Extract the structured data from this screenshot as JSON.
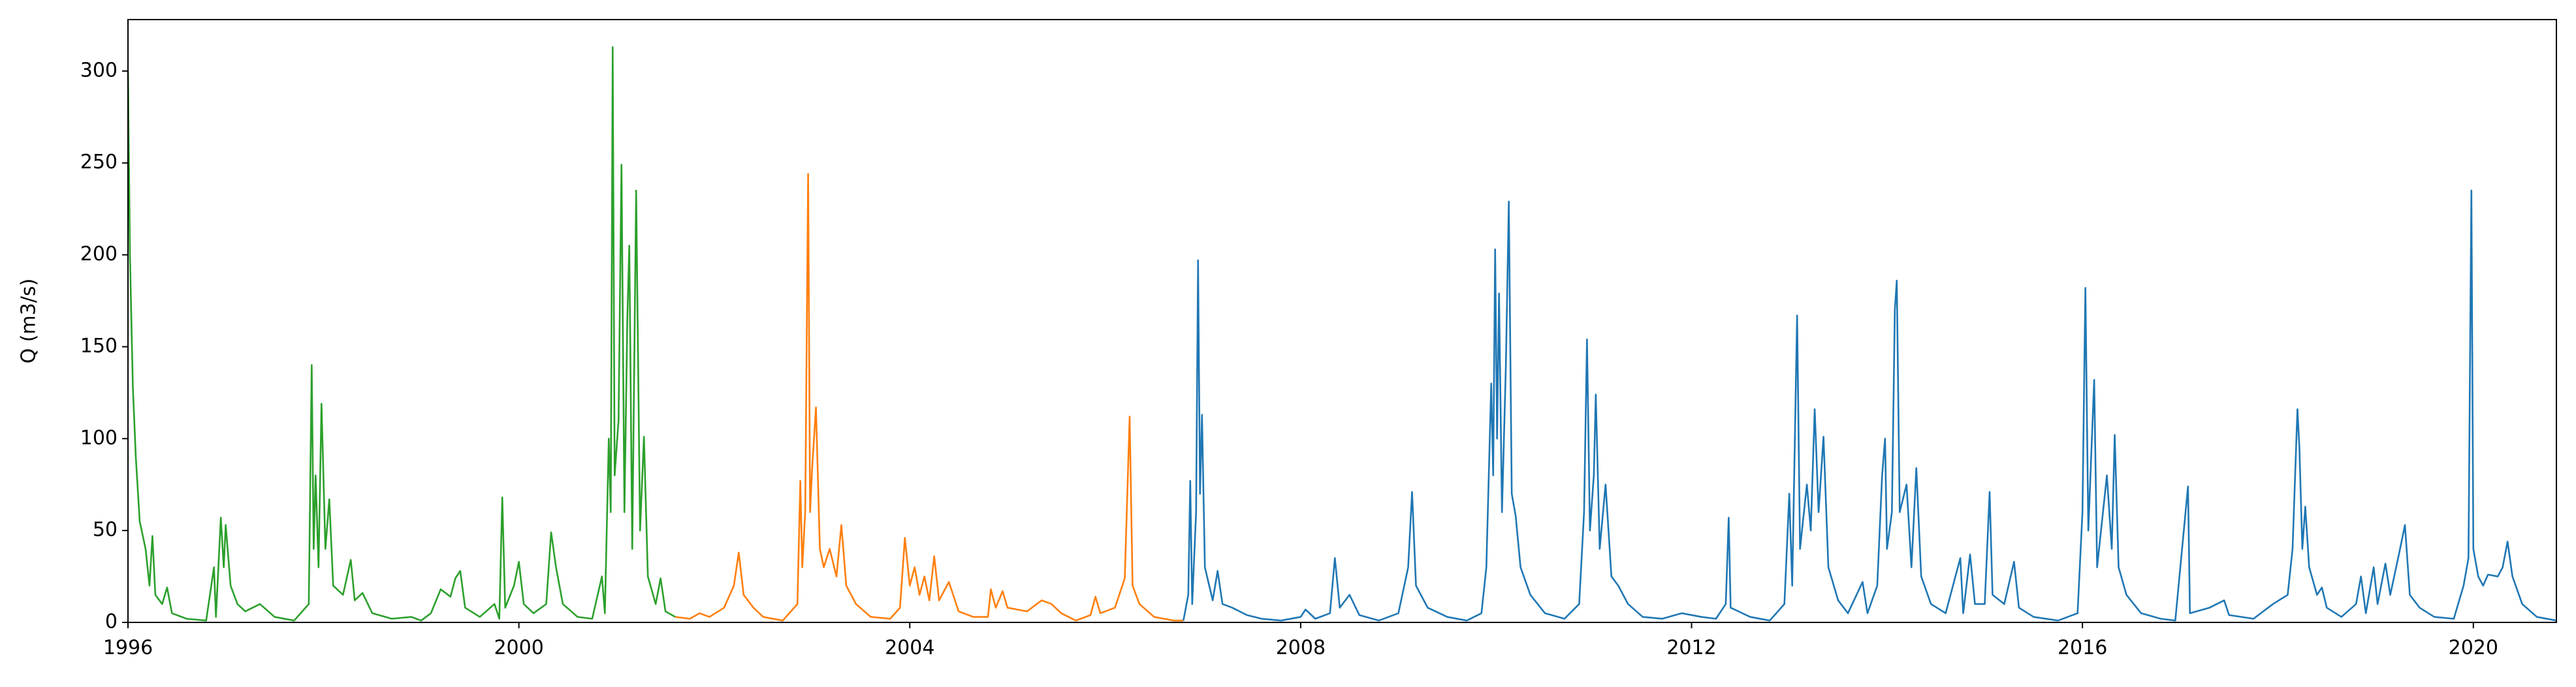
{
  "chart_data": {
    "type": "line",
    "y_label": "Q (m3/s)",
    "xlim": [
      1996,
      2020.85
    ],
    "xticks": [
      1996,
      2000,
      2004,
      2008,
      2012,
      2016,
      2020
    ],
    "ylim": [
      0,
      328
    ],
    "yticks": [
      0,
      50,
      100,
      150,
      200,
      250,
      300
    ],
    "grid": false,
    "series": [
      {
        "color": "#2ca02c",
        "x": [
          1996.0,
          1996.02,
          1996.05,
          1996.08,
          1996.12,
          1996.18,
          1996.22,
          1996.25,
          1996.28,
          1996.35,
          1996.4,
          1996.45,
          1996.6,
          1996.8,
          1996.88,
          1996.9,
          1996.95,
          1996.98,
          1997.0,
          1997.05,
          1997.12,
          1997.2,
          1997.35,
          1997.5,
          1997.7,
          1997.85,
          1997.88,
          1997.9,
          1997.92,
          1997.95,
          1997.98,
          1998.02,
          1998.06,
          1998.1,
          1998.2,
          1998.28,
          1998.32,
          1998.4,
          1998.5,
          1998.7,
          1998.9,
          1999.0,
          1999.1,
          1999.2,
          1999.3,
          1999.35,
          1999.4,
          1999.45,
          1999.6,
          1999.75,
          1999.8,
          1999.83,
          1999.86,
          1999.95,
          2000.0,
          2000.05,
          2000.15,
          2000.28,
          2000.33,
          2000.38,
          2000.45,
          2000.6,
          2000.75,
          2000.85,
          2000.88,
          2000.92,
          2000.94,
          2000.96,
          2000.98,
          2001.02,
          2001.05,
          2001.08,
          2001.11,
          2001.13,
          2001.16,
          2001.2,
          2001.24,
          2001.28,
          2001.32,
          2001.4,
          2001.45,
          2001.5,
          2001.6
        ],
        "values": [
          300,
          200,
          128,
          90,
          55,
          40,
          20,
          47,
          15,
          10,
          19,
          5,
          2,
          1,
          30,
          3,
          57,
          30,
          53,
          20,
          10,
          6,
          10,
          3,
          1,
          10,
          140,
          40,
          80,
          30,
          119,
          40,
          67,
          20,
          15,
          34,
          12,
          16,
          5,
          2,
          3,
          1,
          5,
          18,
          14,
          24,
          28,
          8,
          3,
          10,
          2,
          68,
          8,
          20,
          33,
          10,
          5,
          10,
          49,
          30,
          10,
          3,
          2,
          25,
          5,
          100,
          60,
          313,
          80,
          110,
          249,
          60,
          166,
          205,
          40,
          235,
          50,
          101,
          25,
          10,
          24,
          6,
          3
        ]
      },
      {
        "color": "#ff7f0e",
        "x": [
          2001.6,
          2001.75,
          2001.85,
          2001.95,
          2002.1,
          2002.2,
          2002.25,
          2002.3,
          2002.4,
          2002.5,
          2002.7,
          2002.85,
          2002.88,
          2002.9,
          2002.93,
          2002.96,
          2002.98,
          2003.0,
          2003.04,
          2003.08,
          2003.12,
          2003.18,
          2003.25,
          2003.3,
          2003.35,
          2003.45,
          2003.6,
          2003.8,
          2003.9,
          2003.95,
          2004.0,
          2004.05,
          2004.1,
          2004.15,
          2004.2,
          2004.25,
          2004.3,
          2004.4,
          2004.5,
          2004.65,
          2004.8,
          2004.83,
          2004.88,
          2004.95,
          2005.0,
          2005.2,
          2005.35,
          2005.45,
          2005.55,
          2005.7,
          2005.85,
          2005.9,
          2005.95,
          2006.1,
          2006.2,
          2006.25,
          2006.28,
          2006.35,
          2006.5,
          2006.7,
          2006.8
        ],
        "values": [
          3,
          2,
          5,
          3,
          8,
          20,
          38,
          15,
          8,
          3,
          1,
          10,
          77,
          30,
          60,
          244,
          60,
          83,
          117,
          40,
          30,
          40,
          25,
          53,
          20,
          10,
          3,
          2,
          8,
          46,
          20,
          30,
          15,
          25,
          12,
          36,
          12,
          22,
          6,
          3,
          3,
          18,
          8,
          17,
          8,
          6,
          12,
          10,
          5,
          1,
          4,
          14,
          5,
          8,
          24,
          112,
          20,
          10,
          3,
          1,
          1
        ]
      },
      {
        "color": "#1f77b4",
        "x": [
          2006.8,
          2006.85,
          2006.87,
          2006.89,
          2006.93,
          2006.95,
          2006.97,
          2006.99,
          2007.02,
          2007.1,
          2007.15,
          2007.2,
          2007.3,
          2007.45,
          2007.6,
          2007.8,
          2008.0,
          2008.05,
          2008.15,
          2008.3,
          2008.35,
          2008.4,
          2008.5,
          2008.6,
          2008.8,
          2009.0,
          2009.1,
          2009.14,
          2009.18,
          2009.3,
          2009.5,
          2009.7,
          2009.85,
          2009.9,
          2009.95,
          2009.97,
          2009.99,
          2010.01,
          2010.03,
          2010.06,
          2010.1,
          2010.13,
          2010.16,
          2010.2,
          2010.25,
          2010.35,
          2010.5,
          2010.7,
          2010.85,
          2010.9,
          2010.93,
          2010.96,
          2011.0,
          2011.02,
          2011.06,
          2011.12,
          2011.18,
          2011.25,
          2011.35,
          2011.5,
          2011.7,
          2011.9,
          2012.1,
          2012.25,
          2012.35,
          2012.38,
          2012.4,
          2012.6,
          2012.8,
          2012.95,
          2013.0,
          2013.03,
          2013.08,
          2013.11,
          2013.18,
          2013.22,
          2013.26,
          2013.3,
          2013.35,
          2013.4,
          2013.5,
          2013.6,
          2013.75,
          2013.8,
          2013.9,
          2013.95,
          2013.98,
          2014.0,
          2014.05,
          2014.08,
          2014.1,
          2014.13,
          2014.2,
          2014.25,
          2014.3,
          2014.35,
          2014.45,
          2014.6,
          2014.75,
          2014.78,
          2014.85,
          2014.9,
          2015.0,
          2015.05,
          2015.08,
          2015.2,
          2015.3,
          2015.35,
          2015.5,
          2015.75,
          2015.95,
          2016.0,
          2016.03,
          2016.06,
          2016.12,
          2016.15,
          2016.25,
          2016.3,
          2016.33,
          2016.37,
          2016.45,
          2016.6,
          2016.8,
          2016.95,
          2017.08,
          2017.1,
          2017.3,
          2017.45,
          2017.5,
          2017.75,
          2017.95,
          2018.1,
          2018.15,
          2018.2,
          2018.22,
          2018.25,
          2018.28,
          2018.32,
          2018.4,
          2018.45,
          2018.5,
          2018.65,
          2018.8,
          2018.85,
          2018.9,
          2018.98,
          2019.02,
          2019.1,
          2019.15,
          2019.25,
          2019.3,
          2019.35,
          2019.45,
          2019.6,
          2019.8,
          2019.9,
          2019.95,
          2019.98,
          2020.0,
          2020.05,
          2020.1,
          2020.15,
          2020.25,
          2020.3,
          2020.35,
          2020.4,
          2020.5,
          2020.65,
          2020.85
        ],
        "values": [
          1,
          15,
          77,
          10,
          60,
          197,
          70,
          113,
          30,
          12,
          28,
          10,
          8,
          4,
          2,
          1,
          3,
          7,
          2,
          5,
          35,
          8,
          15,
          4,
          1,
          5,
          30,
          71,
          20,
          8,
          3,
          1,
          5,
          30,
          130,
          80,
          203,
          100,
          179,
          60,
          140,
          229,
          70,
          58,
          30,
          15,
          5,
          2,
          10,
          60,
          154,
          50,
          80,
          124,
          40,
          75,
          25,
          20,
          10,
          3,
          2,
          5,
          3,
          2,
          10,
          57,
          8,
          3,
          1,
          10,
          70,
          20,
          167,
          40,
          75,
          50,
          116,
          60,
          101,
          30,
          12,
          5,
          22,
          5,
          20,
          80,
          100,
          40,
          60,
          170,
          186,
          60,
          75,
          30,
          84,
          25,
          10,
          5,
          35,
          5,
          37,
          10,
          10,
          71,
          15,
          10,
          33,
          8,
          3,
          1,
          5,
          60,
          182,
          50,
          132,
          30,
          80,
          40,
          102,
          30,
          15,
          5,
          2,
          1,
          74,
          5,
          8,
          12,
          4,
          2,
          10,
          15,
          40,
          116,
          95,
          40,
          63,
          30,
          15,
          19,
          8,
          3,
          10,
          25,
          5,
          30,
          10,
          32,
          15,
          40,
          53,
          15,
          8,
          3,
          2,
          20,
          35,
          235,
          40,
          25,
          20,
          26,
          25,
          30,
          44,
          25,
          10,
          3,
          1
        ]
      }
    ]
  }
}
